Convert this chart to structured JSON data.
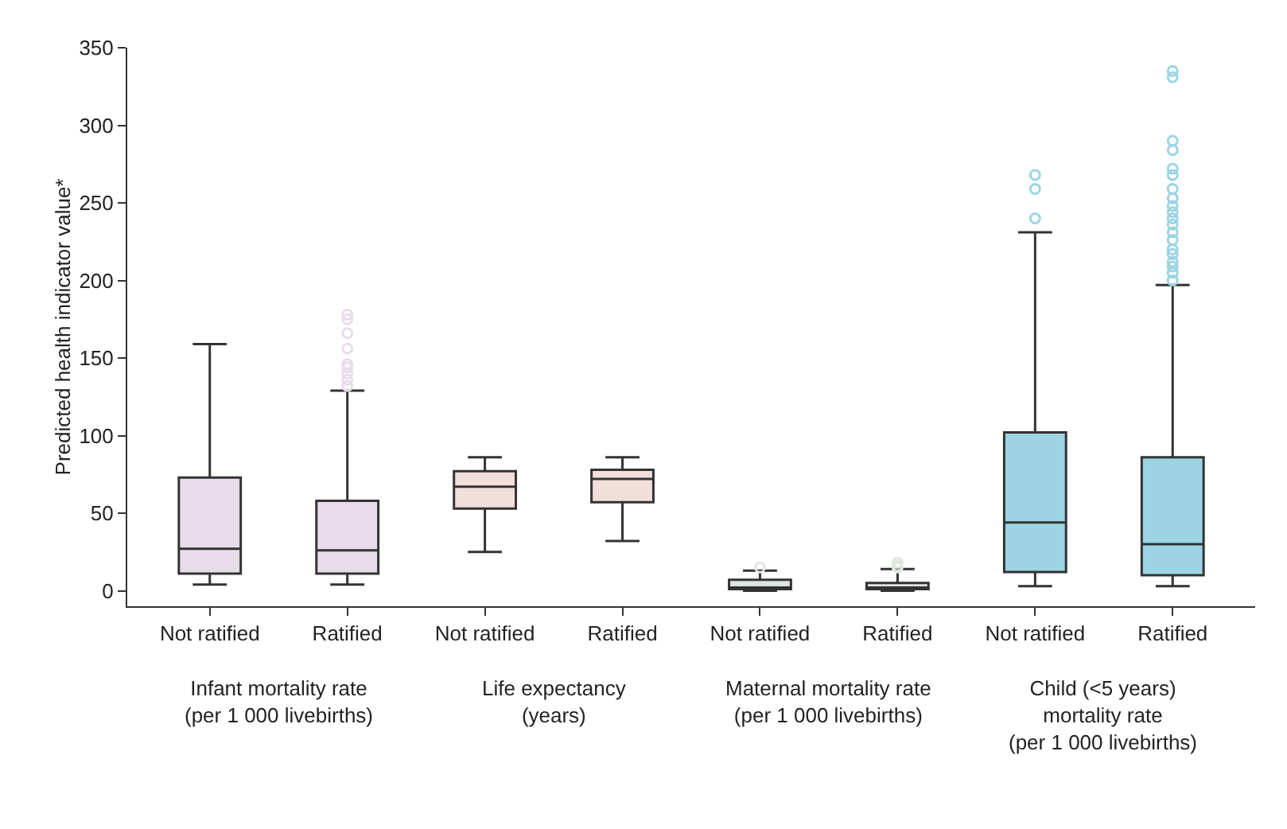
{
  "chart_data": {
    "type": "box",
    "ylabel": "Predicted health indicator value*",
    "categories": [
      "Not ratified",
      "Ratified",
      "Not ratified",
      "Ratified",
      "Not ratified",
      "Ratified",
      "Not ratified",
      "Ratified"
    ],
    "colors": [
      "#e8dcea",
      "#e8dcea",
      "#f2dfdc",
      "#f2dfdc",
      "#dfe6e0",
      "#dfe6e0",
      "#9dd4e4",
      "#9dd4e4"
    ],
    "boxes": [
      {
        "low": 4,
        "q1": 11,
        "median": 27,
        "q3": 73,
        "high": 159
      },
      {
        "low": 4,
        "q1": 11,
        "median": 26,
        "q3": 58,
        "high": 129,
        "outliers": [
          132,
          136,
          140,
          144,
          146,
          156,
          166,
          175,
          178
        ]
      },
      {
        "low": 25,
        "q1": 53,
        "median": 67,
        "q3": 77,
        "high": 86
      },
      {
        "low": 32,
        "q1": 57,
        "median": 72,
        "q3": 78,
        "high": 86
      },
      {
        "low": 0,
        "q1": 1,
        "median": 2,
        "q3": 7,
        "high": 13,
        "outliers": [
          15
        ]
      },
      {
        "low": 0,
        "q1": 1,
        "median": 2,
        "q3": 5,
        "high": 14,
        "outliers": [
          15,
          16,
          18
        ]
      },
      {
        "low": 3,
        "q1": 12,
        "median": 44,
        "q3": 102,
        "high": 231,
        "outliers": [
          240,
          259,
          268
        ]
      },
      {
        "low": 3,
        "q1": 10,
        "median": 30,
        "q3": 86,
        "high": 197,
        "outliers": [
          200,
          205,
          209,
          212,
          217,
          220,
          226,
          231,
          236,
          240,
          244,
          248,
          253,
          259,
          268,
          272,
          284,
          290,
          331,
          335
        ]
      }
    ],
    "ylim": [
      -10,
      350
    ],
    "yticks": [
      0,
      50,
      100,
      150,
      200,
      250,
      300,
      350
    ],
    "grid": false,
    "legend": false,
    "marker": "circle",
    "annotations": [
      "Infant mortality rate\n(per 1 000 livebirths)",
      "Life expectancy\n(years)",
      "Maternal mortality rate\n(per 1 000 livebirths)",
      "Child (<5 years)\nmortality rate\n(per 1 000 livebirths)"
    ]
  }
}
